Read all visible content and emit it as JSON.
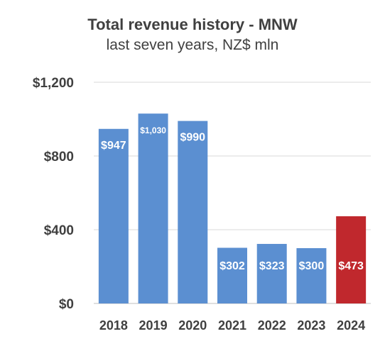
{
  "chart_data": {
    "type": "bar",
    "title": "Total revenue history - MNW",
    "subtitle": "last seven years, NZ$ mln",
    "categories": [
      "2018",
      "2019",
      "2020",
      "2021",
      "2022",
      "2023",
      "2024"
    ],
    "values": [
      947,
      1030,
      990,
      302,
      323,
      300,
      473
    ],
    "data_labels": [
      "$947",
      "$1,030",
      "$990",
      "$302",
      "$323",
      "$300",
      "$473"
    ],
    "bar_colors": [
      "#5b8fd1",
      "#5b8fd1",
      "#5b8fd1",
      "#5b8fd1",
      "#5b8fd1",
      "#5b8fd1",
      "#c0282d"
    ],
    "ylim": [
      0,
      1200
    ],
    "yticks": [
      0,
      400,
      800,
      1200
    ],
    "ytick_labels": [
      "$0",
      "$400",
      "$800",
      "$1,200"
    ],
    "grid": true,
    "legend": "none",
    "xlabel": "",
    "ylabel": ""
  }
}
